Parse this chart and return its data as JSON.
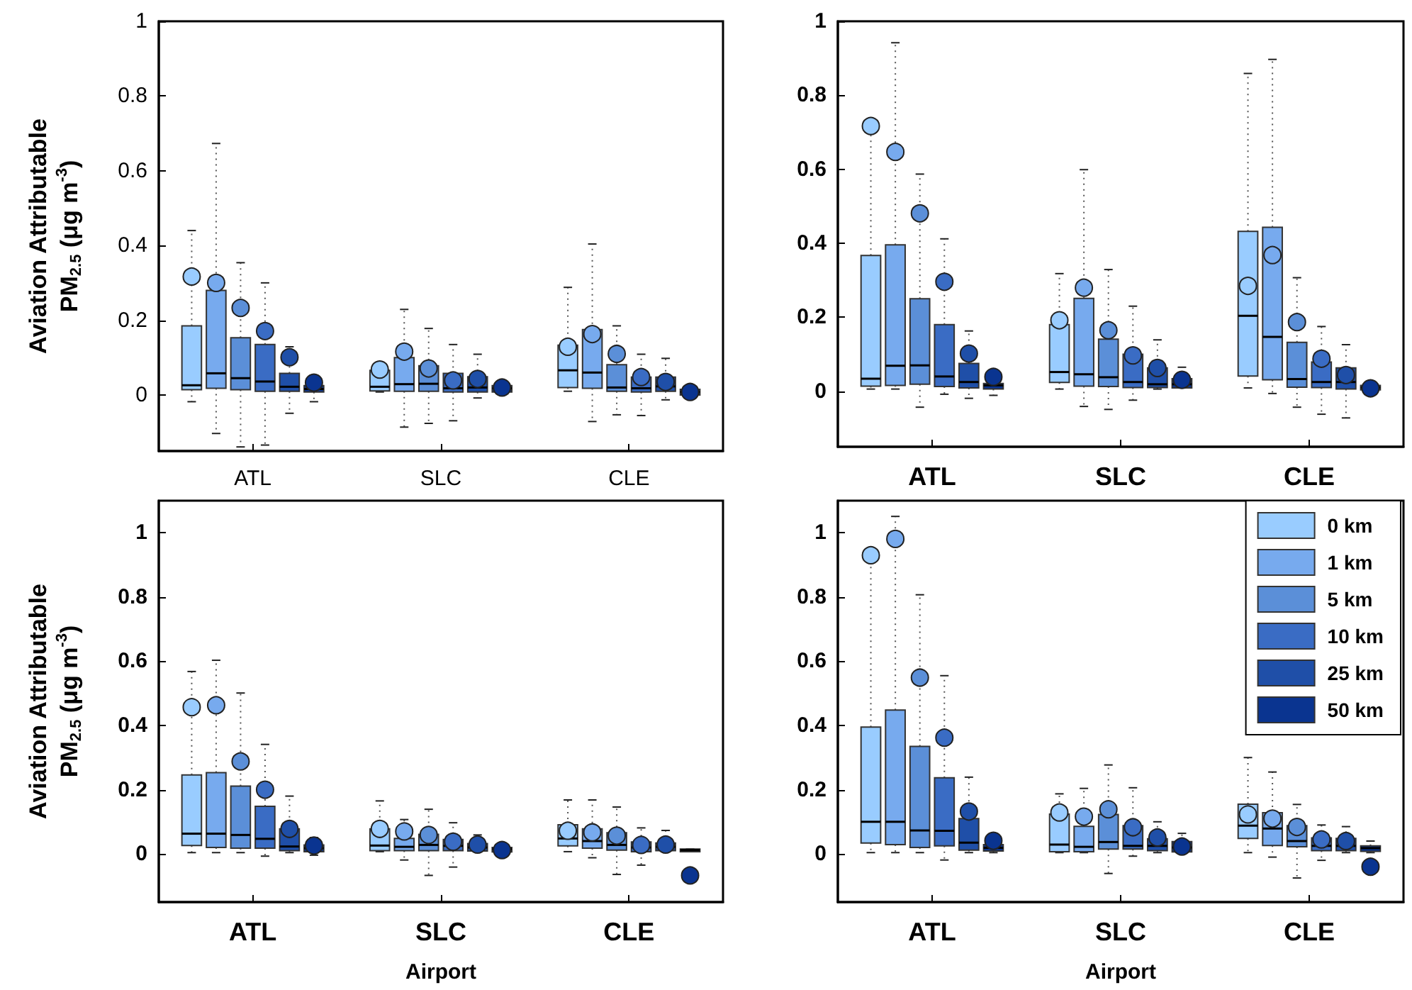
{
  "chart_data": [
    {
      "type": "box",
      "categories": [
        "ATL",
        "SLC",
        "CLE"
      ],
      "ylabel": "Aviation Attributable PM$_{2.5}$ (μg m$^{-3}$)",
      "ylim": [
        -0.15,
        1
      ],
      "yticks": [
        0,
        0.2,
        0.4,
        0.6,
        0.8,
        1
      ],
      "grid": false,
      "legend": false,
      "series": [
        {
          "color": "#99ccff",
          "boxes": [
            {
              "low": -0.018,
              "q1": 0.014,
              "median": 0.026,
              "q3": 0.185,
              "high": 0.44,
              "mean": 0.317
            },
            {
              "low": 0.008,
              "q1": 0.011,
              "median": 0.022,
              "q3": 0.066,
              "high": 0.075,
              "mean": 0.068
            },
            {
              "low": 0.01,
              "q1": 0.02,
              "median": 0.066,
              "q3": 0.133,
              "high": 0.288,
              "mean": 0.129
            }
          ]
        },
        {
          "color": "#77aaee",
          "boxes": [
            {
              "low": -0.103,
              "q1": 0.018,
              "median": 0.058,
              "q3": 0.28,
              "high": 0.673,
              "mean": 0.3
            },
            {
              "low": -0.086,
              "q1": 0.01,
              "median": 0.029,
              "q3": 0.1,
              "high": 0.229,
              "mean": 0.116
            },
            {
              "low": -0.071,
              "q1": 0.018,
              "median": 0.06,
              "q3": 0.175,
              "high": 0.404,
              "mean": 0.163
            }
          ]
        },
        {
          "color": "#5b8fd8",
          "boxes": [
            {
              "low": -0.139,
              "q1": 0.014,
              "median": 0.045,
              "q3": 0.153,
              "high": 0.354,
              "mean": 0.233
            },
            {
              "low": -0.076,
              "q1": 0.01,
              "median": 0.03,
              "q3": 0.078,
              "high": 0.178,
              "mean": 0.071
            },
            {
              "low": -0.053,
              "q1": 0.01,
              "median": 0.02,
              "q3": 0.081,
              "high": 0.185,
              "mean": 0.11
            }
          ]
        },
        {
          "color": "#3a6cc4",
          "boxes": [
            {
              "low": -0.134,
              "q1": 0.01,
              "median": 0.036,
              "q3": 0.135,
              "high": 0.3,
              "mean": 0.171
            },
            {
              "low": -0.069,
              "q1": 0.008,
              "median": 0.018,
              "q3": 0.058,
              "high": 0.135,
              "mean": 0.039
            },
            {
              "low": -0.055,
              "q1": 0.008,
              "median": 0.018,
              "q3": 0.048,
              "high": 0.109,
              "mean": 0.048
            }
          ]
        },
        {
          "color": "#1f4fa8",
          "boxes": [
            {
              "low": -0.049,
              "q1": 0.01,
              "median": 0.022,
              "q3": 0.058,
              "high": 0.129,
              "mean": 0.101
            },
            {
              "low": -0.008,
              "q1": 0.008,
              "median": 0.02,
              "q3": 0.049,
              "high": 0.109,
              "mean": 0.043
            },
            {
              "low": -0.013,
              "q1": 0.01,
              "median": 0.023,
              "q3": 0.048,
              "high": 0.098,
              "mean": 0.035
            }
          ]
        },
        {
          "color": "#0a3490",
          "boxes": [
            {
              "low": -0.018,
              "q1": 0.008,
              "median": 0.016,
              "q3": 0.025,
              "high": 0.033,
              "mean": 0.033
            },
            {
              "low": 0.005,
              "q1": 0.008,
              "median": 0.018,
              "q3": 0.025,
              "high": 0.03,
              "mean": 0.02
            },
            {
              "low": -0.002,
              "q1": 0.0,
              "median": 0.008,
              "q3": 0.015,
              "high": 0.02,
              "mean": 0.008
            }
          ]
        }
      ]
    },
    {
      "type": "box",
      "categories": [
        "ATL",
        "SLC",
        "CLE"
      ],
      "ylim": [
        -0.15,
        1
      ],
      "yticks": [
        0,
        0.2,
        0.4,
        0.6,
        0.8,
        1
      ],
      "grid": false,
      "legend": false,
      "series": [
        {
          "color": "#99ccff",
          "boxes": [
            {
              "low": 0.006,
              "q1": 0.014,
              "median": 0.034,
              "q3": 0.367,
              "high": 0.72,
              "mean": 0.717
            },
            {
              "low": 0.006,
              "q1": 0.024,
              "median": 0.052,
              "q3": 0.18,
              "high": 0.318,
              "mean": 0.192
            },
            {
              "low": 0.009,
              "q1": 0.041,
              "median": 0.204,
              "q3": 0.432,
              "high": 0.859,
              "mean": 0.285
            }
          ]
        },
        {
          "color": "#77aaee",
          "boxes": [
            {
              "low": 0.006,
              "q1": 0.016,
              "median": 0.069,
              "q3": 0.396,
              "high": 0.942,
              "mean": 0.647
            },
            {
              "low": -0.041,
              "q1": 0.014,
              "median": 0.046,
              "q3": 0.251,
              "high": 0.599,
              "mean": 0.28
            },
            {
              "low": -0.006,
              "q1": 0.031,
              "median": 0.147,
              "q3": 0.443,
              "high": 0.897,
              "mean": 0.368
            }
          ]
        },
        {
          "color": "#5b8fd8",
          "boxes": [
            {
              "low": -0.043,
              "q1": 0.019,
              "median": 0.07,
              "q3": 0.25,
              "high": 0.587,
              "mean": 0.481
            },
            {
              "low": -0.049,
              "q1": 0.013,
              "median": 0.038,
              "q3": 0.141,
              "high": 0.329,
              "mean": 0.165
            },
            {
              "low": -0.043,
              "q1": 0.011,
              "median": 0.033,
              "q3": 0.132,
              "high": 0.307,
              "mean": 0.187
            }
          ]
        },
        {
          "color": "#3a6cc4",
          "boxes": [
            {
              "low": -0.008,
              "q1": 0.013,
              "median": 0.04,
              "q3": 0.18,
              "high": 0.412,
              "mean": 0.296
            },
            {
              "low": -0.024,
              "q1": 0.01,
              "median": 0.025,
              "q3": 0.1,
              "high": 0.23,
              "mean": 0.097
            },
            {
              "low": -0.062,
              "q1": 0.01,
              "median": 0.025,
              "q3": 0.079,
              "high": 0.175,
              "mean": 0.088
            }
          ]
        },
        {
          "color": "#1f4fa8",
          "boxes": [
            {
              "low": -0.019,
              "q1": 0.009,
              "median": 0.025,
              "q3": 0.075,
              "high": 0.163,
              "mean": 0.102
            },
            {
              "low": 0.006,
              "q1": 0.01,
              "median": 0.019,
              "q3": 0.063,
              "high": 0.139,
              "mean": 0.063
            },
            {
              "low": -0.072,
              "q1": 0.006,
              "median": 0.025,
              "q3": 0.063,
              "high": 0.126,
              "mean": 0.044
            }
          ]
        },
        {
          "color": "#0a3490",
          "boxes": [
            {
              "low": -0.011,
              "q1": 0.006,
              "median": 0.016,
              "q3": 0.021,
              "high": 0.04,
              "mean": 0.039
            },
            {
              "low": 0.009,
              "q1": 0.009,
              "median": 0.019,
              "q3": 0.034,
              "high": 0.065,
              "mean": 0.031
            },
            {
              "low": 0.0,
              "q1": 0.004,
              "median": 0.01,
              "q3": 0.016,
              "high": 0.02,
              "mean": 0.008
            }
          ]
        }
      ]
    },
    {
      "type": "box",
      "categories": [
        "ATL",
        "SLC",
        "CLE"
      ],
      "xlabel": "Airport",
      "ylabel": "Aviation Attributable PM$_{2.5}$ (μg m$^{-3}$)",
      "ylim": [
        -0.15,
        1.1
      ],
      "yticks": [
        0,
        0.2,
        0.4,
        0.6,
        0.8,
        1
      ],
      "grid": false,
      "legend": false,
      "series": [
        {
          "color": "#99ccff",
          "boxes": [
            {
              "low": 0.004,
              "q1": 0.026,
              "median": 0.063,
              "q3": 0.246,
              "high": 0.568,
              "mean": 0.457
            },
            {
              "low": 0.007,
              "q1": 0.01,
              "median": 0.026,
              "q3": 0.078,
              "high": 0.165,
              "mean": 0.078
            },
            {
              "low": 0.007,
              "q1": 0.025,
              "median": 0.048,
              "q3": 0.091,
              "high": 0.168,
              "mean": 0.072
            }
          ]
        },
        {
          "color": "#77aaee",
          "boxes": [
            {
              "low": 0.004,
              "q1": 0.02,
              "median": 0.063,
              "q3": 0.253,
              "high": 0.603,
              "mean": 0.463
            },
            {
              "low": -0.019,
              "q1": 0.01,
              "median": 0.022,
              "q3": 0.048,
              "high": 0.107,
              "mean": 0.07
            },
            {
              "low": -0.012,
              "q1": 0.018,
              "median": 0.04,
              "q3": 0.078,
              "high": 0.168,
              "mean": 0.067
            }
          ]
        },
        {
          "color": "#5b8fd8",
          "boxes": [
            {
              "low": 0.004,
              "q1": 0.018,
              "median": 0.059,
              "q3": 0.211,
              "high": 0.501,
              "mean": 0.288
            },
            {
              "low": -0.067,
              "q1": 0.01,
              "median": 0.028,
              "q3": 0.061,
              "high": 0.139,
              "mean": 0.059
            },
            {
              "low": -0.064,
              "q1": 0.012,
              "median": 0.028,
              "q3": 0.066,
              "high": 0.146,
              "mean": 0.057
            }
          ]
        },
        {
          "color": "#3a6cc4",
          "boxes": [
            {
              "low": -0.007,
              "q1": 0.018,
              "median": 0.047,
              "q3": 0.148,
              "high": 0.341,
              "mean": 0.2
            },
            {
              "low": -0.041,
              "q1": 0.01,
              "median": 0.025,
              "q3": 0.045,
              "high": 0.097,
              "mean": 0.038
            },
            {
              "low": -0.035,
              "q1": 0.007,
              "median": 0.02,
              "q3": 0.037,
              "high": 0.081,
              "mean": 0.028
            }
          ]
        },
        {
          "color": "#1f4fa8",
          "boxes": [
            {
              "low": 0.004,
              "q1": 0.01,
              "median": 0.023,
              "q3": 0.078,
              "high": 0.18,
              "mean": 0.078
            },
            {
              "low": 0.007,
              "q1": 0.009,
              "median": 0.02,
              "q3": 0.032,
              "high": 0.059,
              "mean": 0.029
            },
            {
              "low": 0.007,
              "q1": 0.01,
              "median": 0.022,
              "q3": 0.034,
              "high": 0.073,
              "mean": 0.029
            }
          ]
        },
        {
          "color": "#0a3490",
          "boxes": [
            {
              "low": -0.004,
              "q1": 0.007,
              "median": 0.018,
              "q3": 0.028,
              "high": 0.051,
              "mean": 0.026
            },
            {
              "low": 0.004,
              "q1": 0.006,
              "median": 0.015,
              "q3": 0.02,
              "high": 0.022,
              "mean": 0.012
            },
            {
              "low": 0.007,
              "q1": 0.007,
              "median": 0.012,
              "q3": 0.015,
              "high": 0.015,
              "mean": -0.067
            }
          ]
        }
      ]
    },
    {
      "type": "box",
      "categories": [
        "ATL",
        "SLC",
        "CLE"
      ],
      "xlabel": "Airport",
      "ylim": [
        -0.15,
        1.1
      ],
      "yticks": [
        0,
        0.2,
        0.4,
        0.6,
        0.8,
        1
      ],
      "grid": false,
      "legend": "top right",
      "series": [
        {
          "name": "0 km",
          "color": "#99ccff",
          "boxes": [
            {
              "low": 0.004,
              "q1": 0.034,
              "median": 0.1,
              "q3": 0.395,
              "high": 0.93,
              "mean": 0.93
            },
            {
              "low": 0.004,
              "q1": 0.007,
              "median": 0.029,
              "q3": 0.124,
              "high": 0.187,
              "mean": 0.129
            },
            {
              "low": 0.004,
              "q1": 0.048,
              "median": 0.088,
              "q3": 0.155,
              "high": 0.3,
              "mean": 0.123
            }
          ]
        },
        {
          "name": "1 km",
          "color": "#77aaee",
          "boxes": [
            {
              "low": 0.004,
              "q1": 0.029,
              "median": 0.1,
              "q3": 0.448,
              "high": 1.051,
              "mean": 0.981
            },
            {
              "low": 0.004,
              "q1": 0.007,
              "median": 0.022,
              "q3": 0.086,
              "high": 0.204,
              "mean": 0.116
            },
            {
              "low": -0.01,
              "q1": 0.026,
              "median": 0.079,
              "q3": 0.128,
              "high": 0.255,
              "mean": 0.11
            }
          ]
        },
        {
          "name": "5 km",
          "color": "#5b8fd8",
          "boxes": [
            {
              "low": 0.004,
              "q1": 0.02,
              "median": 0.073,
              "q3": 0.335,
              "high": 0.807,
              "mean": 0.549
            },
            {
              "low": -0.061,
              "q1": 0.015,
              "median": 0.037,
              "q3": 0.123,
              "high": 0.277,
              "mean": 0.139
            },
            {
              "low": -0.075,
              "q1": 0.022,
              "median": 0.04,
              "q3": 0.088,
              "high": 0.154,
              "mean": 0.084
            }
          ]
        },
        {
          "name": "10 km",
          "color": "#3a6cc4",
          "boxes": [
            {
              "low": -0.019,
              "q1": 0.025,
              "median": 0.072,
              "q3": 0.237,
              "high": 0.555,
              "mean": 0.362
            },
            {
              "low": -0.007,
              "q1": 0.015,
              "median": 0.025,
              "q3": 0.088,
              "high": 0.206,
              "mean": 0.083
            },
            {
              "low": -0.02,
              "q1": 0.01,
              "median": 0.025,
              "q3": 0.05,
              "high": 0.09,
              "mean": 0.045
            }
          ]
        },
        {
          "name": "25 km",
          "color": "#1f4fa8",
          "boxes": [
            {
              "low": 0.004,
              "q1": 0.012,
              "median": 0.035,
              "q3": 0.11,
              "high": 0.239,
              "mean": 0.132
            },
            {
              "low": 0.004,
              "q1": 0.01,
              "median": 0.025,
              "q3": 0.047,
              "high": 0.1,
              "mean": 0.051
            },
            {
              "low": 0.004,
              "q1": 0.01,
              "median": 0.025,
              "q3": 0.048,
              "high": 0.085,
              "mean": 0.04
            }
          ]
        },
        {
          "name": "50 km",
          "color": "#0a3490",
          "boxes": [
            {
              "low": 0.004,
              "q1": 0.009,
              "median": 0.019,
              "q3": 0.029,
              "high": 0.045,
              "mean": 0.041
            },
            {
              "low": 0.004,
              "q1": 0.006,
              "median": 0.02,
              "q3": 0.038,
              "high": 0.064,
              "mean": 0.023
            },
            {
              "low": 0.004,
              "q1": 0.008,
              "median": 0.018,
              "q3": 0.025,
              "high": 0.04,
              "mean": -0.04
            }
          ]
        }
      ]
    }
  ]
}
